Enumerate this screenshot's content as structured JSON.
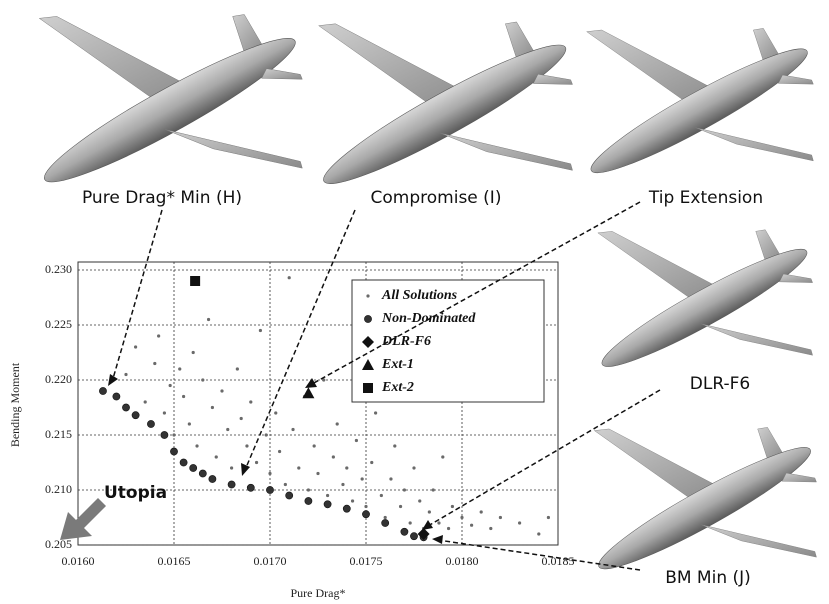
{
  "chart_data": {
    "type": "scatter",
    "x_label": "Pure Drag*",
    "y_label": "Bending Moment",
    "xlim": [
      0.016,
      0.0185
    ],
    "ylim": [
      0.205,
      0.23
    ],
    "xticks": [
      {
        "value": 0.016,
        "label": "0.0160"
      },
      {
        "value": 0.0165,
        "label": "0.0165"
      },
      {
        "value": 0.017,
        "label": "0.0170"
      },
      {
        "value": 0.0175,
        "label": "0.0175"
      },
      {
        "value": 0.018,
        "label": "0.0180"
      },
      {
        "value": 0.0185,
        "label": "0.0185"
      }
    ],
    "yticks": [
      0.205,
      {
        "value": 0.21,
        "label": "0.210"
      },
      0.215,
      {
        "value": 0.22,
        "label": "0.220"
      },
      0.225,
      {
        "value": 0.23,
        "label": "0.230"
      }
    ],
    "grid": true,
    "legend": "upper right",
    "series": [
      {
        "name": "All Solutions",
        "color": "#6a6a6a",
        "marker": "dot",
        "x": [
          0.01625,
          0.0163,
          0.01635,
          0.0164,
          0.01642,
          0.01645,
          0.01648,
          0.0165,
          0.01653,
          0.01655,
          0.01658,
          0.0166,
          0.01662,
          0.01665,
          0.01668,
          0.0167,
          0.01672,
          0.01675,
          0.01678,
          0.0168,
          0.01683,
          0.01685,
          0.01688,
          0.0169,
          0.01693,
          0.01695,
          0.01698,
          0.017,
          0.01703,
          0.01705,
          0.01708,
          0.0171,
          0.01712,
          0.01715,
          0.01718,
          0.0172,
          0.01723,
          0.01725,
          0.01728,
          0.0173,
          0.01733,
          0.01735,
          0.01738,
          0.0174,
          0.01743,
          0.01745,
          0.01748,
          0.0175,
          0.01753,
          0.01755,
          0.01758,
          0.0176,
          0.01763,
          0.01765,
          0.01768,
          0.0177,
          0.01773,
          0.01775,
          0.01778,
          0.0178,
          0.01783,
          0.01785,
          0.01788,
          0.0179,
          0.01793,
          0.01795,
          0.018,
          0.01805,
          0.0181,
          0.01815,
          0.0182,
          0.0183,
          0.0184,
          0.01845
        ],
        "y": [
          0.2205,
          0.223,
          0.218,
          0.2215,
          0.224,
          0.217,
          0.2195,
          0.215,
          0.221,
          0.2185,
          0.216,
          0.2225,
          0.214,
          0.22,
          0.2255,
          0.2175,
          0.213,
          0.219,
          0.2155,
          0.212,
          0.221,
          0.2165,
          0.214,
          0.218,
          0.2125,
          0.2245,
          0.215,
          0.2115,
          0.217,
          0.2135,
          0.2105,
          0.2293,
          0.2155,
          0.212,
          0.2185,
          0.21,
          0.214,
          0.2115,
          0.22,
          0.2095,
          0.213,
          0.216,
          0.2105,
          0.212,
          0.209,
          0.2145,
          0.211,
          0.2085,
          0.2125,
          0.217,
          0.2095,
          0.2075,
          0.211,
          0.214,
          0.2085,
          0.21,
          0.207,
          0.212,
          0.209,
          0.2065,
          0.208,
          0.21,
          0.207,
          0.213,
          0.2065,
          0.2085,
          0.2075,
          0.2068,
          0.208,
          0.2065,
          0.2075,
          0.207,
          0.206,
          0.2075
        ]
      },
      {
        "name": "Non-Dominated",
        "color": "#333333",
        "marker": "circle",
        "x": [
          0.01613,
          0.0162,
          0.01625,
          0.0163,
          0.01638,
          0.01645,
          0.0165,
          0.01655,
          0.0166,
          0.01665,
          0.0167,
          0.0168,
          0.0169,
          0.017,
          0.0171,
          0.0172,
          0.0173,
          0.0174,
          0.0175,
          0.0176,
          0.0177,
          0.01775,
          0.0178
        ],
        "y": [
          0.219,
          0.2185,
          0.2175,
          0.2168,
          0.216,
          0.215,
          0.2135,
          0.2125,
          0.212,
          0.2115,
          0.211,
          0.2105,
          0.2102,
          0.21,
          0.2095,
          0.209,
          0.2087,
          0.2083,
          0.2078,
          0.207,
          0.2062,
          0.2058,
          0.2057
        ]
      },
      {
        "name": "DLR-F6",
        "color": "#111111",
        "marker": "diamond",
        "x": [
          0.0178
        ],
        "y": [
          0.206
        ]
      },
      {
        "name": "Ext-1",
        "color": "#111111",
        "marker": "triangle",
        "x": [
          0.0172
        ],
        "y": [
          0.2188
        ]
      },
      {
        "name": "Ext-2",
        "color": "#111111",
        "marker": "square",
        "x": [
          0.01661
        ],
        "y": [
          0.229
        ]
      }
    ],
    "annotations": [
      "Pure Drag* Min (H)",
      "Compromise (I)",
      "Tip Extension",
      "DLR-F6",
      "BM Min (J)",
      "Utopia"
    ]
  }
}
